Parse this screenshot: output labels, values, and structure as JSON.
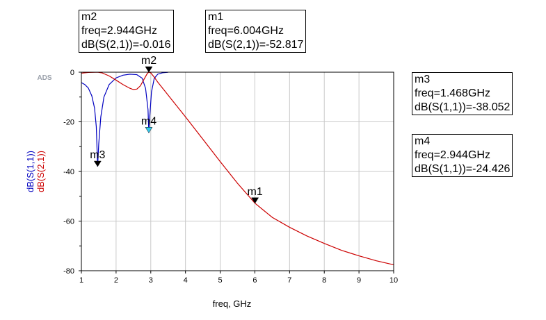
{
  "brand": "ADS",
  "marker_boxes": [
    {
      "id": "m2",
      "name": "m2",
      "freq": "freq=2.944GHz",
      "value": "dB(S(2,1))=-0.016"
    },
    {
      "id": "m1",
      "name": "m1",
      "freq": "freq=6.004GHz",
      "value": "dB(S(2,1))=-52.817"
    },
    {
      "id": "m3",
      "name": "m3",
      "freq": "freq=1.468GHz",
      "value": "dB(S(1,1))=-38.052"
    },
    {
      "id": "m4",
      "name": "m4",
      "freq": "freq=2.944GHz",
      "value": "dB(S(1,1))=-24.426"
    }
  ],
  "chart_data": {
    "type": "line",
    "xlabel": "freq, GHz",
    "ylabel_parts": [
      {
        "text": "dB(S(1,1))",
        "color": "#0000c0"
      },
      {
        "text": "dB(S(2,1))",
        "color": "#cc0000"
      }
    ],
    "xlim": [
      1,
      10
    ],
    "ylim": [
      -80,
      0
    ],
    "x_ticks": [
      "1",
      "2",
      "3",
      "4",
      "5",
      "6",
      "7",
      "8",
      "9",
      "10"
    ],
    "y_ticks": [
      "0",
      "-20",
      "-40",
      "-60",
      "-80"
    ],
    "grid": true,
    "series": [
      {
        "key": "s11",
        "color": "#0000c0",
        "points": [
          [
            1.0,
            -4.2
          ],
          [
            1.1,
            -5.0
          ],
          [
            1.2,
            -6.4
          ],
          [
            1.3,
            -9.5
          ],
          [
            1.38,
            -14.5
          ],
          [
            1.43,
            -22
          ],
          [
            1.468,
            -38.05
          ],
          [
            1.5,
            -29
          ],
          [
            1.56,
            -18
          ],
          [
            1.65,
            -10
          ],
          [
            1.8,
            -5.0
          ],
          [
            2.0,
            -2.3
          ],
          [
            2.2,
            -1.2
          ],
          [
            2.4,
            -0.8
          ],
          [
            2.6,
            -1.0
          ],
          [
            2.75,
            -2.4
          ],
          [
            2.85,
            -6.5
          ],
          [
            2.92,
            -15
          ],
          [
            2.944,
            -24.43
          ],
          [
            2.97,
            -18
          ],
          [
            3.02,
            -8
          ],
          [
            3.1,
            -2.5
          ],
          [
            3.2,
            -0.8
          ],
          [
            3.35,
            -0.2
          ],
          [
            3.5,
            -0.05
          ]
        ]
      },
      {
        "key": "s21",
        "color": "#cc0000",
        "points": [
          [
            1.0,
            -0.4
          ],
          [
            1.2,
            -0.1
          ],
          [
            1.4,
            -0.05
          ],
          [
            1.468,
            -0.02
          ],
          [
            1.6,
            -0.3
          ],
          [
            1.8,
            -1.5
          ],
          [
            2.0,
            -3.2
          ],
          [
            2.2,
            -5.0
          ],
          [
            2.4,
            -6.5
          ],
          [
            2.5,
            -7.0
          ],
          [
            2.6,
            -6.8
          ],
          [
            2.7,
            -5.5
          ],
          [
            2.8,
            -3.0
          ],
          [
            2.9,
            -0.5
          ],
          [
            2.944,
            -0.016
          ],
          [
            3.0,
            -0.3
          ],
          [
            3.1,
            -2.0
          ],
          [
            3.2,
            -4.0
          ],
          [
            3.4,
            -7.5
          ],
          [
            3.6,
            -11
          ],
          [
            3.8,
            -14.5
          ],
          [
            4.0,
            -18
          ],
          [
            4.5,
            -27
          ],
          [
            5.0,
            -36
          ],
          [
            5.5,
            -44.8
          ],
          [
            6.004,
            -52.82
          ],
          [
            6.5,
            -58.5
          ],
          [
            7.0,
            -62.5
          ],
          [
            7.5,
            -66
          ],
          [
            8.0,
            -69
          ],
          [
            8.5,
            -71.8
          ],
          [
            9.0,
            -74
          ],
          [
            9.5,
            -76
          ],
          [
            10.0,
            -77.6
          ]
        ]
      }
    ],
    "markers": [
      {
        "name": "m2",
        "x": 2.944,
        "y": -0.016,
        "color": "#000000"
      },
      {
        "name": "m4",
        "x": 2.944,
        "y": -24.426,
        "color": "#33ccee"
      },
      {
        "name": "m3",
        "x": 1.468,
        "y": -38.052,
        "color": "#000000"
      },
      {
        "name": "m1",
        "x": 6.004,
        "y": -52.817,
        "color": "#000000"
      }
    ]
  }
}
